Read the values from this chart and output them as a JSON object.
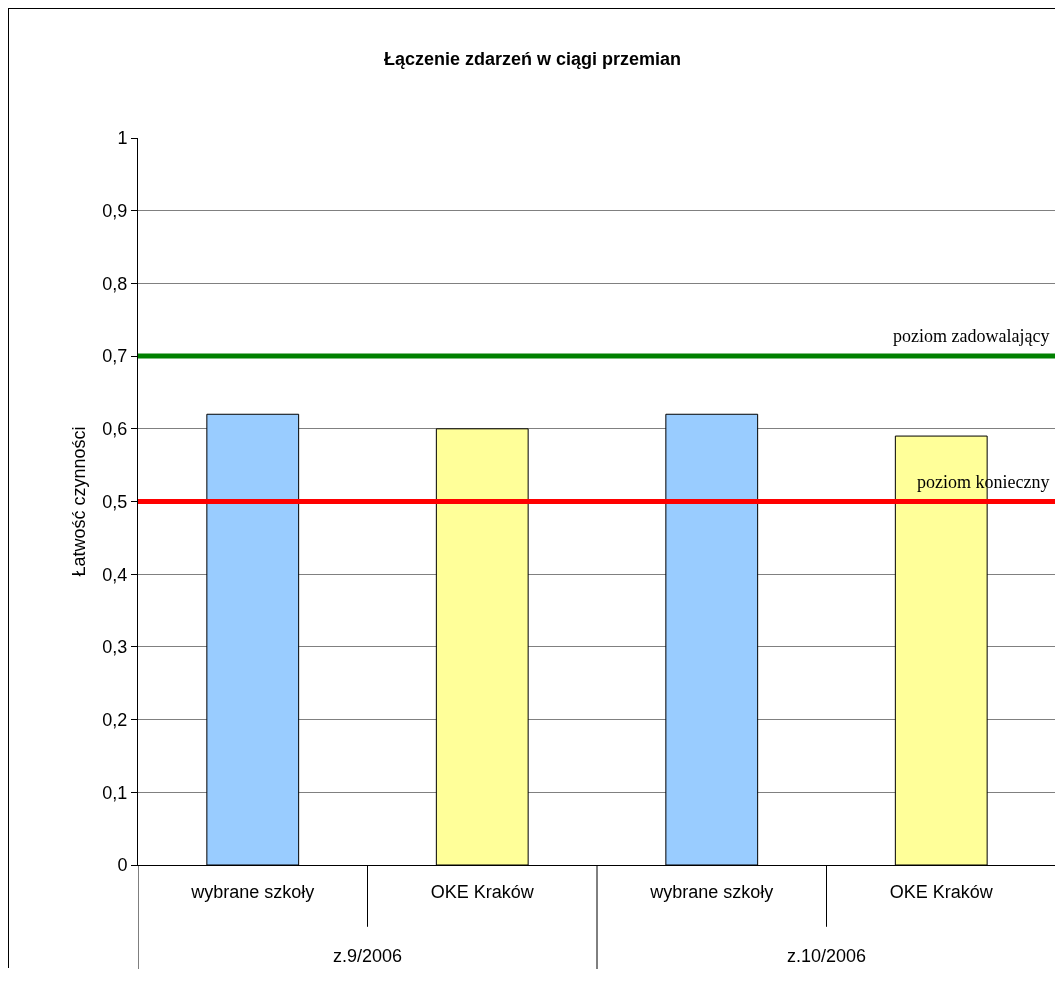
{
  "chart_data": {
    "type": "bar",
    "title": "Łączenie zdarzeń w ciągi przemian",
    "ylabel": "Łatwość czynności",
    "categories": [
      "wybrane szkoły",
      "OKE Kraków",
      "wybrane szkoły",
      "OKE Kraków"
    ],
    "values": [
      0.62,
      0.6,
      0.62,
      0.59
    ],
    "colors": [
      "#99ccff",
      "#ffff99",
      "#99ccff",
      "#ffff99"
    ],
    "annotations": [
      "z.9/2006",
      "z.10/2006"
    ],
    "ylim": [
      0,
      1
    ],
    "yticks": [
      {
        "value": 0,
        "label": "0"
      },
      {
        "value": 0.1,
        "label": "0,1"
      },
      {
        "value": 0.2,
        "label": "0,2"
      },
      {
        "value": 0.3,
        "label": "0,3"
      },
      {
        "value": 0.4,
        "label": "0,4"
      },
      {
        "value": 0.5,
        "label": "0,5"
      },
      {
        "value": 0.6,
        "label": "0,6"
      },
      {
        "value": 0.7,
        "label": "0,7"
      },
      {
        "value": 0.8,
        "label": "0,8"
      },
      {
        "value": 0.9,
        "label": "0,9"
      },
      {
        "value": 1,
        "label": "1"
      }
    ],
    "ref_lines": [
      {
        "axis": "y",
        "value": 0.7,
        "label": "poziom zadowalający",
        "color": "#008000"
      },
      {
        "axis": "y",
        "value": 0.5,
        "label": "poziom konieczny",
        "color": "#ff0000"
      }
    ],
    "grid": "y"
  }
}
